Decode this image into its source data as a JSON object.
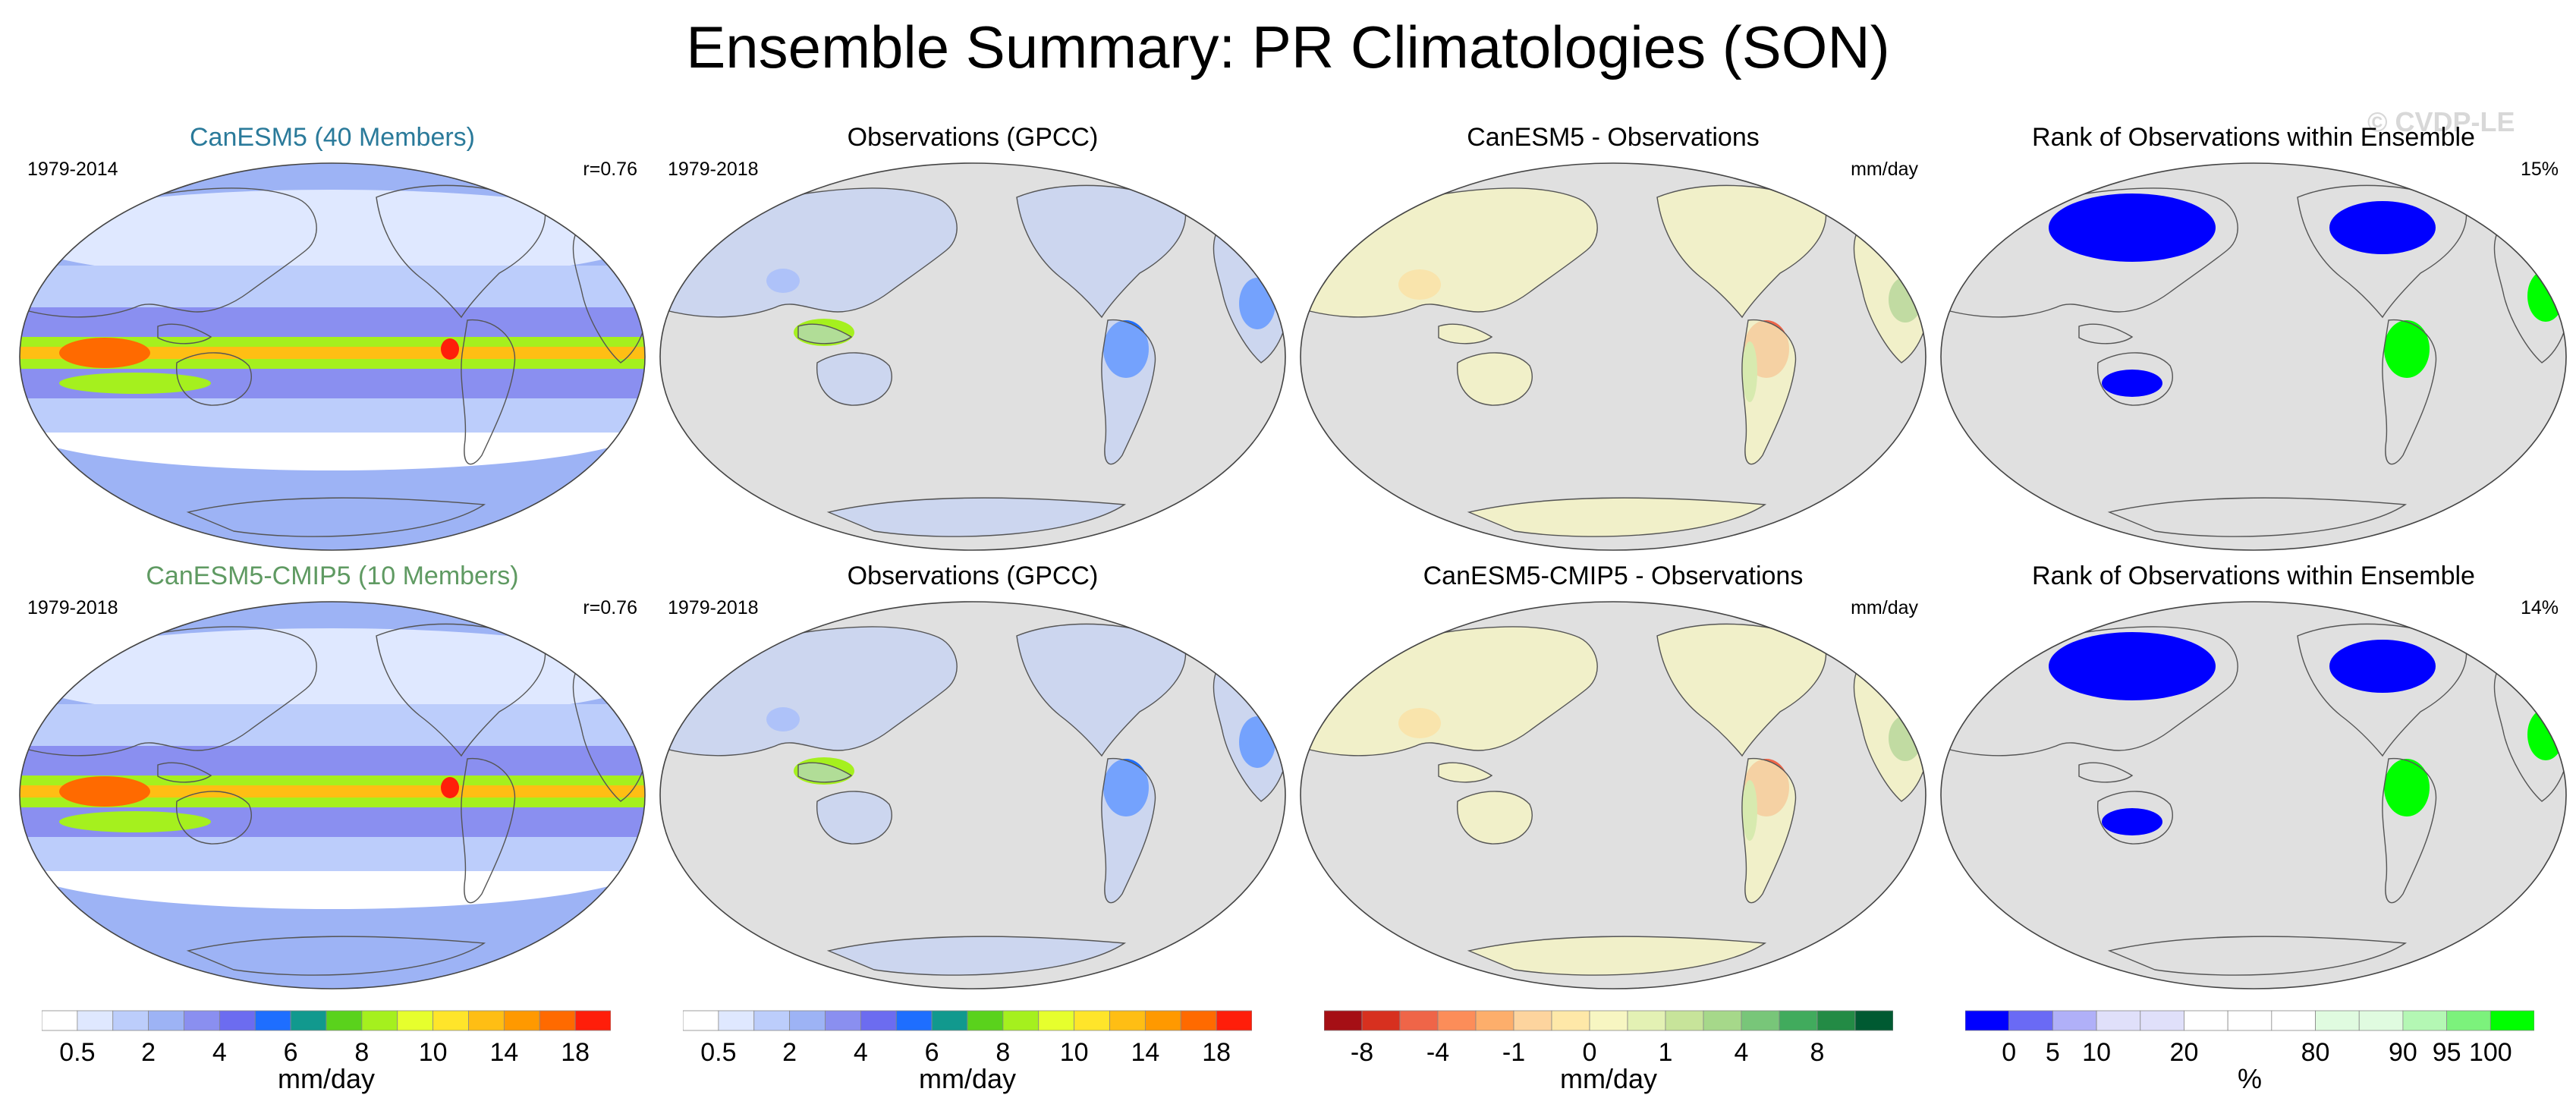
{
  "title": "Ensemble Summary: PR Climatologies (SON)",
  "watermark": "© CVDP-LE",
  "panels": [
    {
      "title": "CanESM5 (40 Members)",
      "title_color": "#2a7a9a",
      "left": "1979-2014",
      "right": "r=0.76",
      "kind": "model"
    },
    {
      "title": "Observations (GPCC)",
      "title_color": "#000000",
      "left": "1979-2018",
      "right": "",
      "kind": "obs"
    },
    {
      "title": "CanESM5 - Observations",
      "title_color": "#000000",
      "left": "",
      "right": "mm/day",
      "kind": "diff"
    },
    {
      "title": "Rank of Observations within Ensemble",
      "title_color": "#000000",
      "left": "",
      "right": "15%",
      "kind": "rank"
    },
    {
      "title": "CanESM5-CMIP5 (10 Members)",
      "title_color": "#5f9a62",
      "left": "1979-2018",
      "right": "r=0.76",
      "kind": "model"
    },
    {
      "title": "Observations (GPCC)",
      "title_color": "#000000",
      "left": "1979-2018",
      "right": "",
      "kind": "obs"
    },
    {
      "title": "CanESM5-CMIP5 - Observations",
      "title_color": "#000000",
      "left": "",
      "right": "mm/day",
      "kind": "diff"
    },
    {
      "title": "Rank of Observations within Ensemble",
      "title_color": "#000000",
      "left": "",
      "right": "14%",
      "kind": "rank"
    }
  ],
  "colorbars": [
    {
      "label": "mm/day",
      "colors": [
        "#ffffff",
        "#dfe8ff",
        "#bccdfb",
        "#9db3f5",
        "#8a8ff0",
        "#6c6cf0",
        "#1e6eff",
        "#11998e",
        "#5ad21c",
        "#a5f01e",
        "#e6ff2d",
        "#ffe52a",
        "#ffbe14",
        "#ff9900",
        "#ff6a00",
        "#ff1e0a"
      ],
      "ticks": [
        "0.5",
        "2",
        "4",
        "6",
        "8",
        "10",
        "14",
        "18"
      ],
      "tick_positions": [
        1,
        3,
        5,
        7,
        9,
        11,
        13,
        15
      ]
    },
    {
      "label": "mm/day",
      "colors": [
        "#ffffff",
        "#dfe8ff",
        "#bccdfb",
        "#9db3f5",
        "#8a8ff0",
        "#6c6cf0",
        "#1e6eff",
        "#11998e",
        "#5ad21c",
        "#a5f01e",
        "#e6ff2d",
        "#ffe52a",
        "#ffbe14",
        "#ff9900",
        "#ff6a00",
        "#ff1e0a"
      ],
      "ticks": [
        "0.5",
        "2",
        "4",
        "6",
        "8",
        "10",
        "14",
        "18"
      ],
      "tick_positions": [
        1,
        3,
        5,
        7,
        9,
        11,
        13,
        15
      ]
    },
    {
      "label": "mm/day",
      "colors": [
        "#a50f15",
        "#d7301f",
        "#ef6548",
        "#fc8d59",
        "#fdae6b",
        "#fdd49e",
        "#fee8a8",
        "#f7f6c2",
        "#e3f1b4",
        "#c7e49a",
        "#a6d88a",
        "#78c679",
        "#41ab5d",
        "#238b45",
        "#005a32"
      ],
      "ticks": [
        "-8",
        "-4",
        "-1",
        "0",
        "1",
        "4",
        "8"
      ],
      "tick_positions": [
        1,
        3,
        5,
        7,
        9,
        11,
        13
      ]
    },
    {
      "label": "%",
      "colors": [
        "#0000ff",
        "#6a6af5",
        "#b0b0f8",
        "#e0e0fa",
        "#e0e0fa",
        "#ffffff",
        "#ffffff",
        "#ffffff",
        "#e0fbe0",
        "#e0fbe0",
        "#b4f7b4",
        "#7cf27c",
        "#00ff00"
      ],
      "ticks": [
        "0",
        "5",
        "10",
        "20",
        "80",
        "90",
        "95",
        "100"
      ],
      "tick_positions": [
        1,
        2,
        3,
        5,
        8,
        10,
        11,
        12
      ]
    }
  ],
  "chart_data": [
    {
      "type": "heatmap",
      "title": "CanESM5 (40 Members)",
      "period": "1979-2014",
      "pattern_correlation": "r=0.76",
      "variable": "PR",
      "season": "SON",
      "units": "mm/day",
      "levels": [
        "0.5",
        "2",
        "4",
        "6",
        "8",
        "10",
        "14",
        "18"
      ]
    },
    {
      "type": "heatmap",
      "title": "Observations (GPCC)",
      "period": "1979-2018",
      "variable": "PR",
      "season": "SON",
      "units": "mm/day",
      "levels": [
        "0.5",
        "2",
        "4",
        "6",
        "8",
        "10",
        "14",
        "18"
      ]
    },
    {
      "type": "heatmap",
      "title": "CanESM5 - Observations",
      "variable": "PR",
      "season": "SON",
      "units": "mm/day",
      "levels": [
        "-8",
        "-4",
        "-1",
        "0",
        "1",
        "4",
        "8"
      ]
    },
    {
      "type": "heatmap",
      "title": "Rank of Observations within Ensemble",
      "summary": "15%",
      "units": "%",
      "levels": [
        "0",
        "5",
        "10",
        "20",
        "80",
        "90",
        "95",
        "100"
      ]
    },
    {
      "type": "heatmap",
      "title": "CanESM5-CMIP5 (10 Members)",
      "period": "1979-2018",
      "pattern_correlation": "r=0.76",
      "variable": "PR",
      "season": "SON",
      "units": "mm/day",
      "levels": [
        "0.5",
        "2",
        "4",
        "6",
        "8",
        "10",
        "14",
        "18"
      ]
    },
    {
      "type": "heatmap",
      "title": "Observations (GPCC)",
      "period": "1979-2018",
      "variable": "PR",
      "season": "SON",
      "units": "mm/day",
      "levels": [
        "0.5",
        "2",
        "4",
        "6",
        "8",
        "10",
        "14",
        "18"
      ]
    },
    {
      "type": "heatmap",
      "title": "CanESM5-CMIP5 - Observations",
      "variable": "PR",
      "season": "SON",
      "units": "mm/day",
      "levels": [
        "-8",
        "-4",
        "-1",
        "0",
        "1",
        "4",
        "8"
      ]
    },
    {
      "type": "heatmap",
      "title": "Rank of Observations within Ensemble",
      "summary": "14%",
      "units": "%",
      "levels": [
        "0",
        "5",
        "10",
        "20",
        "80",
        "90",
        "95",
        "100"
      ]
    }
  ]
}
